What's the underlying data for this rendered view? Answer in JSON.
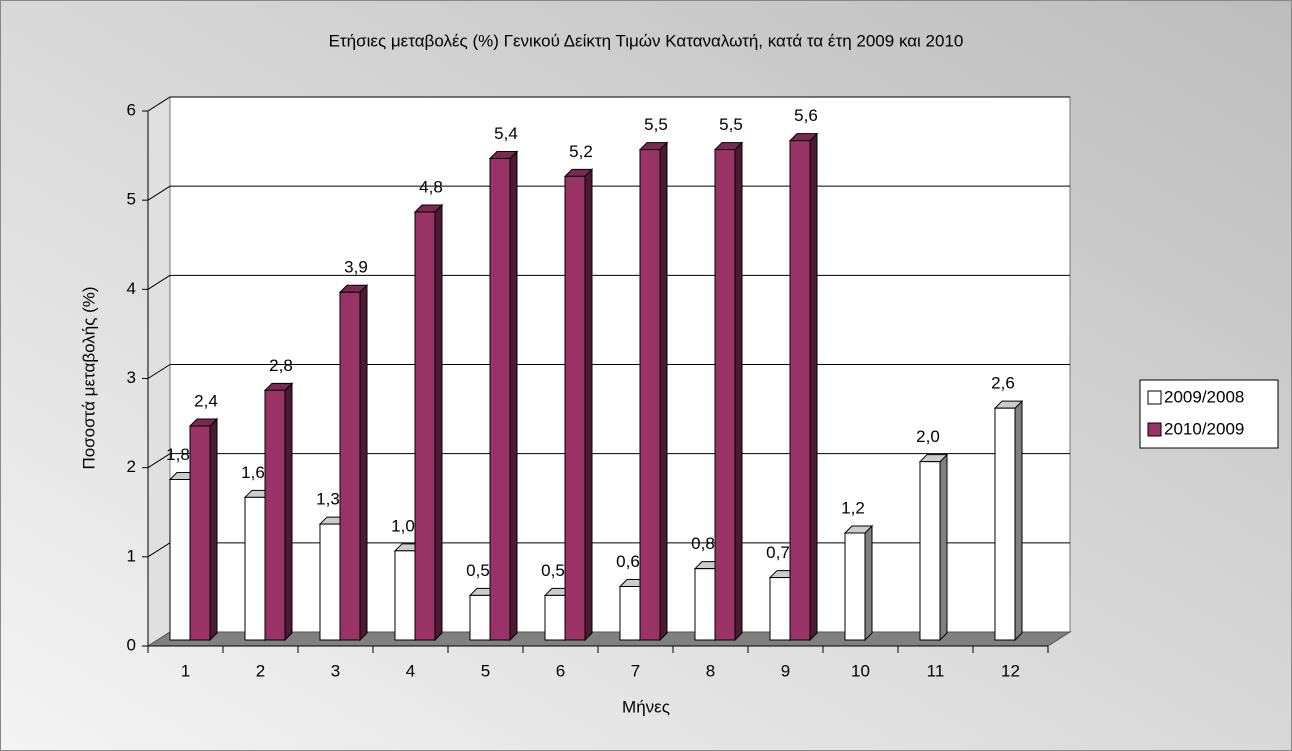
{
  "chart_data": {
    "type": "bar3d",
    "title": "Ετήσιες μεταβολές (%) Γενικού Δείκτη Τιμών Καταναλωτή, κατά τα έτη 2009 και 2010",
    "x_label": "Μήνες",
    "y_label": "Ποσοστά μεταβολής (%)",
    "categories": [
      "1",
      "2",
      "3",
      "4",
      "5",
      "6",
      "7",
      "8",
      "9",
      "10",
      "11",
      "12"
    ],
    "series": [
      {
        "name": "2009/2008",
        "color": "#ffffff",
        "values": [
          1.8,
          1.6,
          1.3,
          1.0,
          0.5,
          0.5,
          0.6,
          0.8,
          0.7,
          1.2,
          2.0,
          2.6
        ],
        "value_labels": [
          "1,8",
          "1,6",
          "1,3",
          "1,0",
          "0,5",
          "0,5",
          "0,6",
          "0,8",
          "0,7",
          "1,2",
          "2,0",
          "2,6"
        ]
      },
      {
        "name": "2010/2009",
        "color": "#993366",
        "values": [
          2.4,
          2.8,
          3.9,
          4.8,
          5.4,
          5.2,
          5.5,
          5.5,
          5.6,
          null,
          null,
          null
        ],
        "value_labels": [
          "2,4",
          "2,8",
          "3,9",
          "4,8",
          "5,4",
          "5,2",
          "5,5",
          "5,5",
          "5,6",
          null,
          null,
          null
        ]
      }
    ],
    "ylim": [
      0,
      6
    ],
    "yticks": [
      0,
      1,
      2,
      3,
      4,
      5,
      6
    ],
    "grid": true,
    "legend": "right"
  }
}
